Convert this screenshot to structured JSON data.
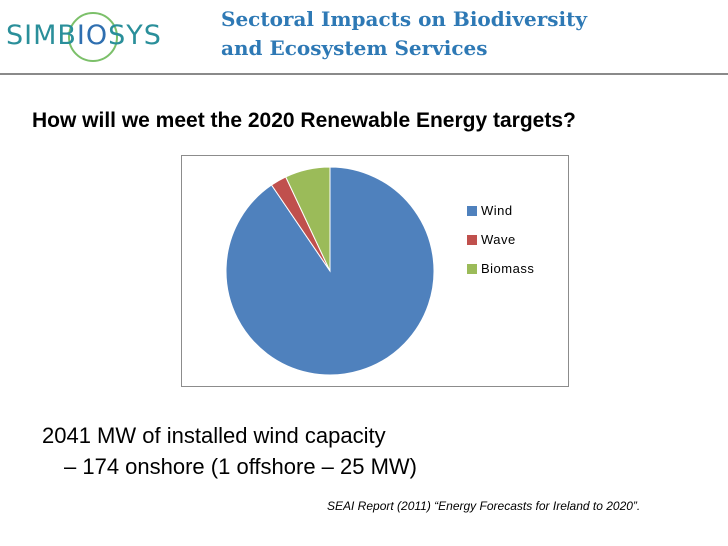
{
  "header": {
    "logo_left": "SIMB",
    "logo_mid": "IO",
    "logo_right": "SYS",
    "title_line1": "Sectoral Impacts on Biodiversity",
    "title_line2": "and Ecosystem Services"
  },
  "slide": {
    "question": "How will we meet the 2020 Renewable Energy targets?",
    "bullet_main": "2041 MW of installed wind capacity",
    "bullet_sub": "– 174 onshore (1 offshore – 25 MW)",
    "source": "SEAI Report (2011) “Energy Forecasts for Ireland to 2020”."
  },
  "chart_data": {
    "type": "pie",
    "categories": [
      "Wind",
      "Wave",
      "Biomass"
    ],
    "values": [
      90.5,
      2.5,
      7.0
    ],
    "colors": [
      "#4f81bd",
      "#c0504d",
      "#9bbb59"
    ],
    "legend": "right"
  }
}
